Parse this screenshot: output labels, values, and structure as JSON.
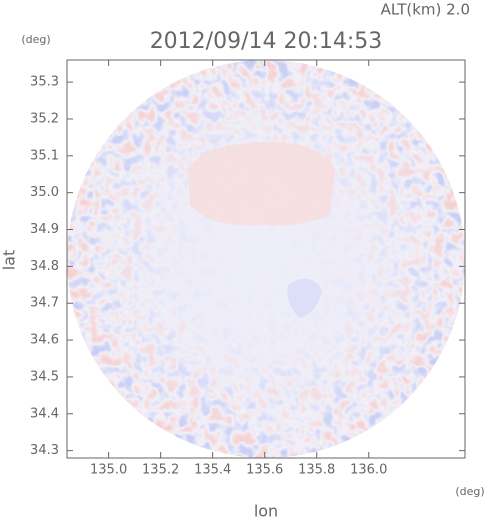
{
  "chart_data": {
    "type": "image",
    "title": "2012/09/14 20:14:53",
    "subtitle": "ALT(km) 2.0",
    "xlabel": "lon",
    "x_unit": "(deg)",
    "ylabel": "lat",
    "y_unit": "(deg)",
    "xlim": [
      134.84,
      136.37
    ],
    "xticks": [
      {
        "value": 135.0,
        "label": "135.0"
      },
      135.2,
      135.4,
      135.6,
      135.8,
      {
        "value": 136.0,
        "label": "136.0"
      }
    ],
    "ylim": [
      34.28,
      35.36
    ],
    "yticks": [
      34.3,
      34.4,
      34.5,
      34.6,
      34.7,
      34.8,
      34.9,
      {
        "value": 35.0,
        "label": "35.0"
      },
      35.1,
      35.2,
      35.3
    ]
  }
}
